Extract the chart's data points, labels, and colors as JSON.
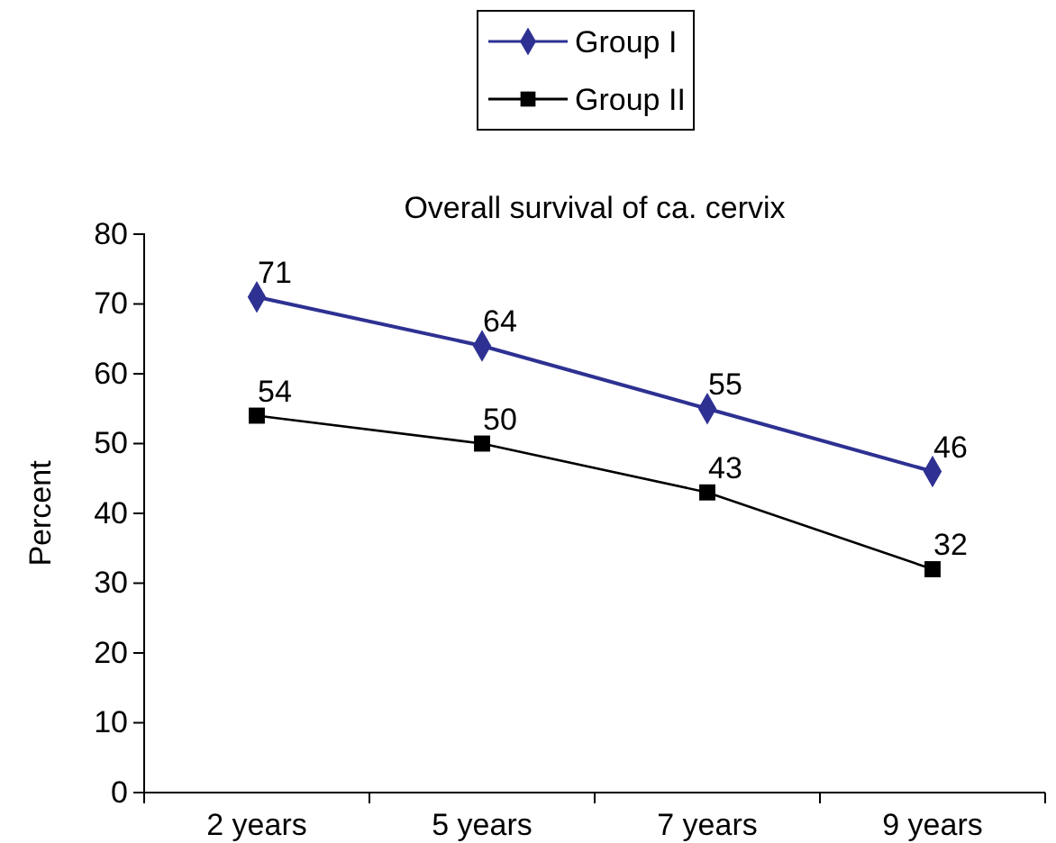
{
  "chart_data": {
    "type": "line",
    "title": "Overall survival of ca. cervix",
    "ylabel": "Percent",
    "categories": [
      "2 years",
      "5 years",
      "7 years",
      "9 years"
    ],
    "series": [
      {
        "name": "Group I",
        "color": "#2e3192",
        "marker": "diamond",
        "values": [
          71,
          64,
          55,
          46
        ]
      },
      {
        "name": "Group II",
        "color": "#000000",
        "marker": "square",
        "values": [
          54,
          50,
          43,
          32
        ]
      }
    ],
    "ylim": [
      0,
      80
    ],
    "yticks": [
      0,
      10,
      20,
      30,
      40,
      50,
      60,
      70,
      80
    ],
    "grid": false,
    "legend": "top",
    "data_labels": true,
    "line_style": "solid"
  }
}
